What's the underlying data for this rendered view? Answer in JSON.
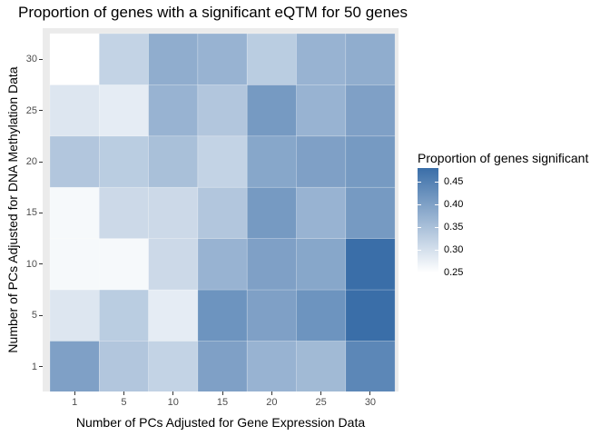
{
  "chart_data": {
    "type": "heatmap",
    "title": "Proportion of genes with a significant eQTM for 50 genes",
    "xlabel": "Number of PCs Adjusted for Gene Expression Data",
    "ylabel": "Number of PCs Adjusted for DNA Methylation Data",
    "x_categories": [
      "1",
      "5",
      "10",
      "15",
      "20",
      "25",
      "30"
    ],
    "y_categories": [
      "1",
      "5",
      "10",
      "15",
      "20",
      "25",
      "30"
    ],
    "values": [
      [
        0.4,
        0.34,
        0.32,
        0.4,
        0.37,
        0.36,
        0.44
      ],
      [
        0.29,
        0.33,
        0.28,
        0.42,
        0.4,
        0.42,
        0.48
      ],
      [
        0.26,
        0.26,
        0.31,
        0.37,
        0.4,
        0.39,
        0.48
      ],
      [
        0.26,
        0.31,
        0.31,
        0.34,
        0.41,
        0.37,
        0.41
      ],
      [
        0.34,
        0.33,
        0.35,
        0.32,
        0.39,
        0.4,
        0.41
      ],
      [
        0.29,
        0.28,
        0.37,
        0.34,
        0.41,
        0.37,
        0.4
      ],
      [
        0.25,
        0.32,
        0.38,
        0.37,
        0.33,
        0.37,
        0.38
      ]
    ],
    "value_range": [
      0.25,
      0.48
    ],
    "legend": {
      "title": "Proportion of genes significant",
      "ticks": [
        "0.25",
        "0.30",
        "0.35",
        "0.40",
        "0.45"
      ],
      "tick_values": [
        0.25,
        0.3,
        0.35,
        0.4,
        0.45
      ],
      "position": "right"
    },
    "colors": {
      "low": "#ffffff",
      "high": "#3a6ea8",
      "panel": "#ebebeb"
    }
  }
}
